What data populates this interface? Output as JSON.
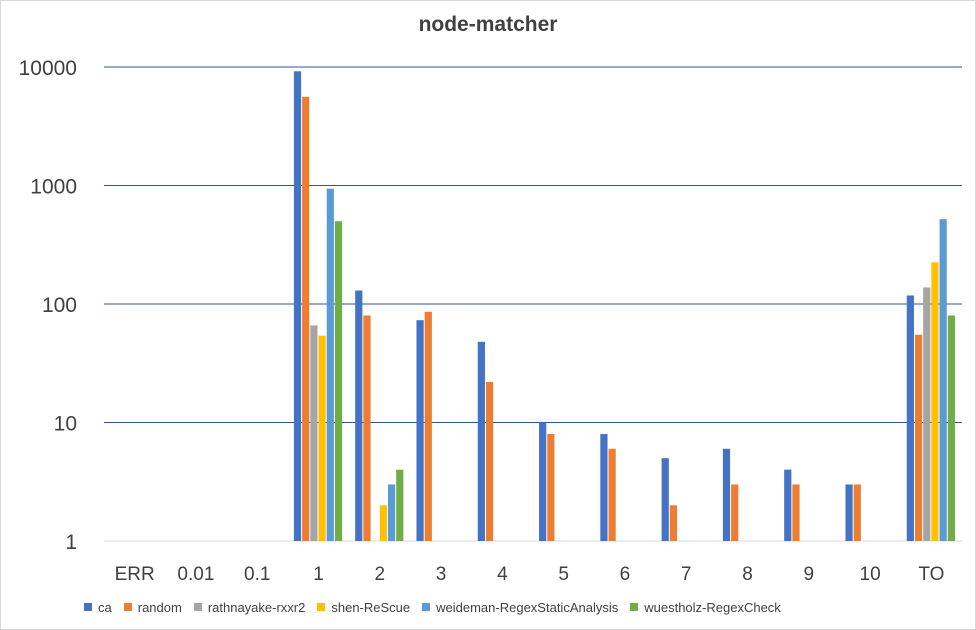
{
  "chart_data": {
    "type": "bar",
    "title": "node-matcher",
    "xlabel": "",
    "ylabel": "",
    "y_scale": "log",
    "ylim": [
      1,
      10000
    ],
    "y_ticks": [
      "1",
      "10",
      "100",
      "1000",
      "10000"
    ],
    "grid": true,
    "legend_position": "bottom",
    "categories": [
      "ERR",
      "0.01",
      "0.1",
      "1",
      "2",
      "3",
      "4",
      "5",
      "6",
      "7",
      "8",
      "9",
      "10",
      "TO"
    ],
    "series": [
      {
        "name": "ca",
        "color": "#4472c4",
        "values": [
          null,
          null,
          null,
          9200,
          130,
          73,
          48,
          10,
          8,
          5,
          6,
          4,
          3,
          118
        ]
      },
      {
        "name": "random",
        "color": "#ed7d31",
        "values": [
          null,
          null,
          null,
          5600,
          80,
          86,
          22,
          8,
          6,
          2,
          3,
          3,
          3,
          55
        ]
      },
      {
        "name": "rathnayake-rxxr2",
        "color": "#a5a5a5",
        "values": [
          null,
          null,
          null,
          66,
          null,
          null,
          null,
          null,
          null,
          null,
          null,
          null,
          null,
          138
        ]
      },
      {
        "name": "shen-ReScue",
        "color": "#ffc000",
        "values": [
          null,
          null,
          null,
          54,
          2,
          null,
          null,
          null,
          null,
          null,
          null,
          null,
          null,
          225
        ]
      },
      {
        "name": "weideman-RegexStaticAnalysis",
        "color": "#5b9bd5",
        "values": [
          null,
          null,
          null,
          940,
          3,
          null,
          null,
          null,
          null,
          null,
          null,
          null,
          null,
          520
        ]
      },
      {
        "name": "wuestholz-RegexCheck",
        "color": "#70ad47",
        "values": [
          null,
          null,
          null,
          500,
          4,
          null,
          null,
          null,
          null,
          null,
          null,
          null,
          null,
          80
        ]
      }
    ]
  }
}
